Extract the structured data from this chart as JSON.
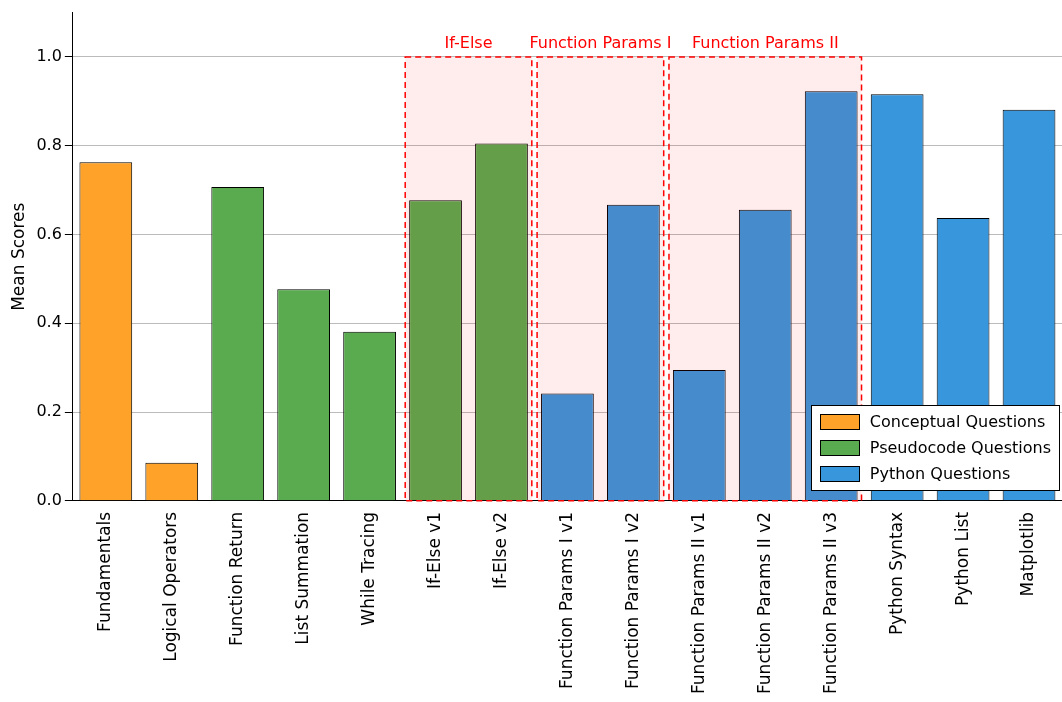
{
  "chart_data": {
    "type": "bar",
    "ylabel": "Mean Scores",
    "categories": [
      "Fundamentals",
      "Logical Operators",
      "Function Return",
      "List Summation",
      "While Tracing",
      "If-Else v1",
      "If-Else v2",
      "Function Params I v1",
      "Function Params I v2",
      "Function Params II v1",
      "Function Params II v2",
      "Function Params II v3",
      "Python Syntax",
      "Python List",
      "Matplotlib"
    ],
    "series": [
      {
        "name": "Conceptual Questions",
        "color": "#ffa22a",
        "values": [
          0.763,
          0.086,
          null,
          null,
          null,
          null,
          null,
          null,
          null,
          null,
          null,
          null,
          null,
          null,
          null
        ]
      },
      {
        "name": "Pseudocode Questions",
        "color": "#5aab4f",
        "values": [
          null,
          null,
          0.707,
          0.477,
          0.381,
          0.677,
          0.805,
          null,
          null,
          null,
          null,
          null,
          null,
          null,
          null
        ]
      },
      {
        "name": "Python Questions",
        "color": "#3896dc",
        "values": [
          null,
          null,
          null,
          null,
          null,
          null,
          null,
          0.242,
          0.667,
          0.295,
          0.656,
          0.923,
          0.916,
          0.637,
          0.881
        ]
      }
    ],
    "ylim": [
      0,
      1.1
    ],
    "yticks": [
      {
        "value": 0,
        "label": "0.0"
      },
      {
        "value": 0.2,
        "label": "0.2"
      },
      {
        "value": 0.4,
        "label": "0.4"
      },
      {
        "value": 0.6,
        "label": "0.6"
      },
      {
        "value": 0.8,
        "label": "0.8"
      },
      {
        "value": 1.0,
        "label": "1.0"
      }
    ],
    "grid": "y",
    "legend": "bottom right",
    "bands": [
      {
        "axis": "x",
        "from": "If-Else v1",
        "to": "If-Else v2",
        "label": "If-Else",
        "color": "#ff0000"
      },
      {
        "axis": "x",
        "from": "Function Params I v1",
        "to": "Function Params I v2",
        "label": "Function Params I",
        "color": "#ff0000"
      },
      {
        "axis": "x",
        "from": "Function Params II v1",
        "to": "Function Params II v3",
        "label": "Function Params II",
        "color": "#ff0000"
      }
    ]
  }
}
